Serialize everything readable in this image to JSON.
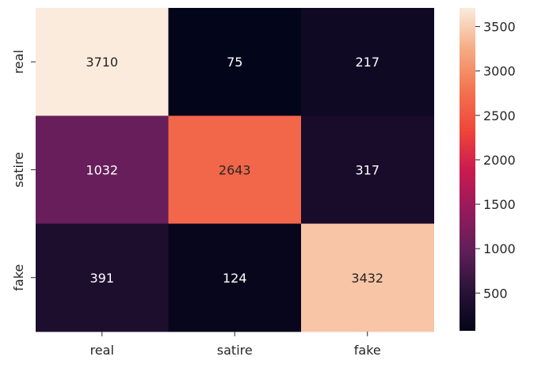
{
  "chart_data": {
    "type": "heatmap",
    "rows": [
      "real",
      "satire",
      "fake"
    ],
    "columns": [
      "real",
      "satire",
      "fake"
    ],
    "values": [
      [
        3710,
        75,
        217
      ],
      [
        1032,
        2643,
        317
      ],
      [
        391,
        124,
        3432
      ]
    ],
    "colorbar": {
      "ticks": [
        "500",
        "1000",
        "1500",
        "2000",
        "2500",
        "3000",
        "3500"
      ],
      "range": [
        75,
        3710
      ]
    },
    "colormap": "rocket"
  }
}
